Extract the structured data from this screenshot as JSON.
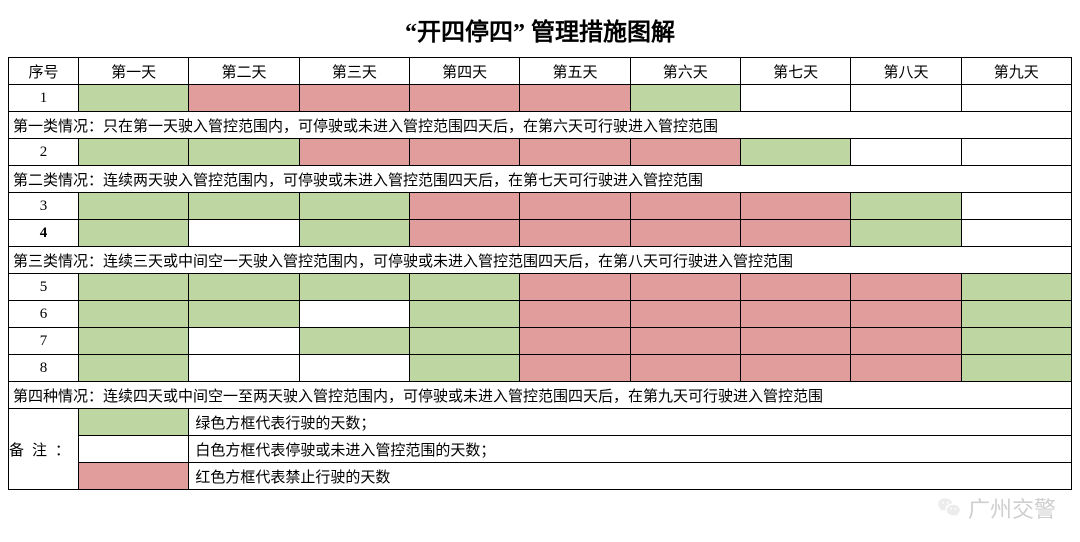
{
  "title": "“开四停四” 管理措施图解",
  "colors": {
    "green": "#bdd6a2",
    "red": "#e19d9b",
    "white": "#ffffff",
    "border": "#000000"
  },
  "seq_header": "序号",
  "day_headers": [
    "第一天",
    "第二天",
    "第三天",
    "第四天",
    "第五天",
    "第六天",
    "第七天",
    "第八天",
    "第九天"
  ],
  "color_rows": [
    {
      "seq": "1",
      "cells": [
        "green",
        "red",
        "red",
        "red",
        "red",
        "green",
        "",
        "",
        ""
      ]
    },
    {
      "seq": "2",
      "cells": [
        "green",
        "green",
        "red",
        "red",
        "red",
        "red",
        "green",
        "",
        ""
      ]
    },
    {
      "seq": "3",
      "cells": [
        "green",
        "green",
        "green",
        "red",
        "red",
        "red",
        "red",
        "green",
        ""
      ]
    },
    {
      "seq": "4",
      "bold": true,
      "cells": [
        "green",
        "white",
        "green",
        "red",
        "red",
        "red",
        "red",
        "green",
        ""
      ]
    },
    {
      "seq": "5",
      "cells": [
        "green",
        "green",
        "green",
        "green",
        "red",
        "red",
        "red",
        "red",
        "green"
      ]
    },
    {
      "seq": "6",
      "cells": [
        "green",
        "green",
        "white",
        "green",
        "red",
        "red",
        "red",
        "red",
        "green"
      ]
    },
    {
      "seq": "7",
      "cells": [
        "green",
        "white",
        "green",
        "green",
        "red",
        "red",
        "red",
        "red",
        "green"
      ]
    },
    {
      "seq": "8",
      "cells": [
        "green",
        "white",
        "white",
        "green",
        "red",
        "red",
        "red",
        "red",
        "green"
      ]
    }
  ],
  "descriptions": {
    "after1": "第一类情况：只在第一天驶入管控范围内，可停驶或未进入管控范围四天后，在第六天可行驶进入管控范围",
    "after2": "第二类情况：连续两天驶入管控范围内，可停驶或未进入管控范围四天后，在第七天可行驶进入管控范围",
    "after4": "第三类情况：连续三天或中间空一天驶入管控范围内，可停驶或未进入管控范围四天后，在第八天可行驶进入管控范围",
    "after8": "第四种情况：连续四天或中间空一至两天驶入管控范围内，可停驶或未进入管控范围四天后，在第九天可行驶进入管控范围"
  },
  "legend": {
    "label": "备注：",
    "rows": [
      {
        "swatch": "green",
        "text": "绿色方框代表行驶的天数；"
      },
      {
        "swatch": "white",
        "text": "白色方框代表停驶或未进入管控范围的天数；"
      },
      {
        "swatch": "red",
        "text": "红色方框代表禁止行驶的天数"
      }
    ]
  },
  "watermark": "广州交警"
}
